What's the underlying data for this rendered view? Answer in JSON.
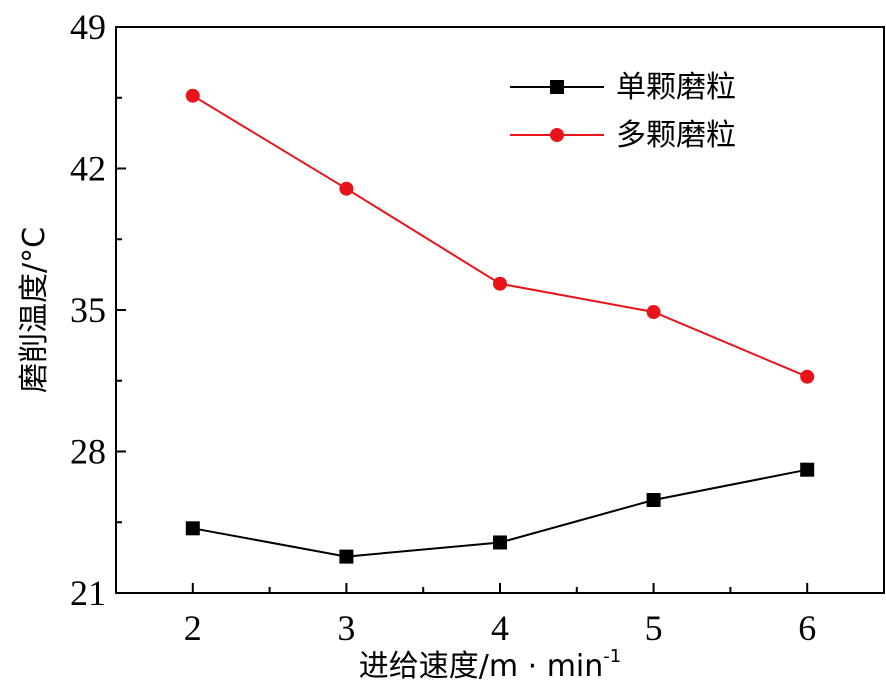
{
  "chart_data": {
    "type": "line",
    "title": "",
    "xlabel": "进给速度/m · min",
    "xlabel_sup": "-1",
    "ylabel": "磨削温度/°C",
    "x": [
      2,
      3,
      4,
      5,
      6
    ],
    "xlim": [
      1.5,
      6.5
    ],
    "ylim": [
      21,
      49
    ],
    "x_ticks": [
      2,
      3,
      4,
      5,
      6
    ],
    "y_ticks": [
      21,
      28,
      35,
      42,
      49
    ],
    "x_tick_labels": [
      "2",
      "3",
      "4",
      "5",
      "6"
    ],
    "y_tick_labels": [
      "21",
      "28",
      "35",
      "42",
      "49"
    ],
    "grid": false,
    "legend_position": "top-right",
    "series": [
      {
        "name": "单颗磨粒",
        "values": [
          24.2,
          22.8,
          23.5,
          25.6,
          27.1
        ],
        "color": "#000000",
        "marker": "square"
      },
      {
        "name": "多颗磨粒",
        "values": [
          45.6,
          41.0,
          36.3,
          34.9,
          31.7
        ],
        "color": "#e8141a",
        "marker": "circle"
      }
    ]
  }
}
